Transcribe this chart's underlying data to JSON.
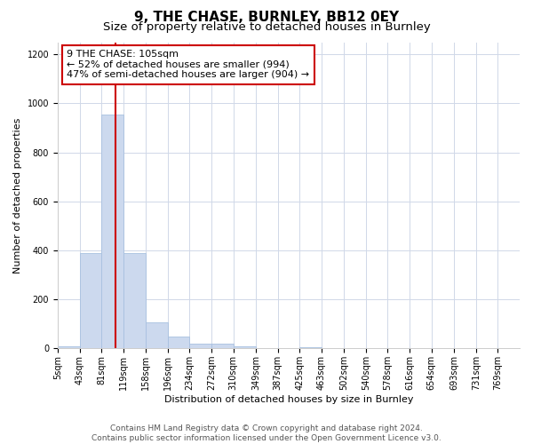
{
  "title": "9, THE CHASE, BURNLEY, BB12 0EY",
  "subtitle": "Size of property relative to detached houses in Burnley",
  "xlabel": "Distribution of detached houses by size in Burnley",
  "ylabel": "Number of detached properties",
  "footer1": "Contains HM Land Registry data © Crown copyright and database right 2024.",
  "footer2": "Contains public sector information licensed under the Open Government Licence v3.0.",
  "annotation_line1": "9 THE CHASE: 105sqm",
  "annotation_line2": "← 52% of detached houses are smaller (994)",
  "annotation_line3": "47% of semi-detached houses are larger (904) →",
  "bar_color": "#ccd9ee",
  "bar_edgecolor": "#a8c0e0",
  "vline_x": 105,
  "vline_color": "#cc0000",
  "categories": [
    "5sqm",
    "43sqm",
    "81sqm",
    "119sqm",
    "158sqm",
    "196sqm",
    "234sqm",
    "272sqm",
    "310sqm",
    "349sqm",
    "387sqm",
    "425sqm",
    "463sqm",
    "502sqm",
    "540sqm",
    "578sqm",
    "616sqm",
    "654sqm",
    "693sqm",
    "731sqm",
    "769sqm"
  ],
  "bin_edges": [
    5,
    43,
    81,
    119,
    158,
    196,
    234,
    272,
    310,
    349,
    387,
    425,
    463,
    502,
    540,
    578,
    616,
    654,
    693,
    731,
    769,
    807
  ],
  "values": [
    10,
    390,
    955,
    390,
    105,
    48,
    20,
    18,
    10,
    0,
    0,
    5,
    0,
    0,
    0,
    0,
    0,
    0,
    0,
    0,
    0
  ],
  "ylim": [
    0,
    1250
  ],
  "yticks": [
    0,
    200,
    400,
    600,
    800,
    1000,
    1200
  ],
  "bg_color": "#ffffff",
  "grid_color": "#d0d8e8",
  "title_fontsize": 11,
  "subtitle_fontsize": 9.5,
  "axis_label_fontsize": 8,
  "tick_fontsize": 7,
  "footer_fontsize": 6.5,
  "annotation_fontsize": 8
}
